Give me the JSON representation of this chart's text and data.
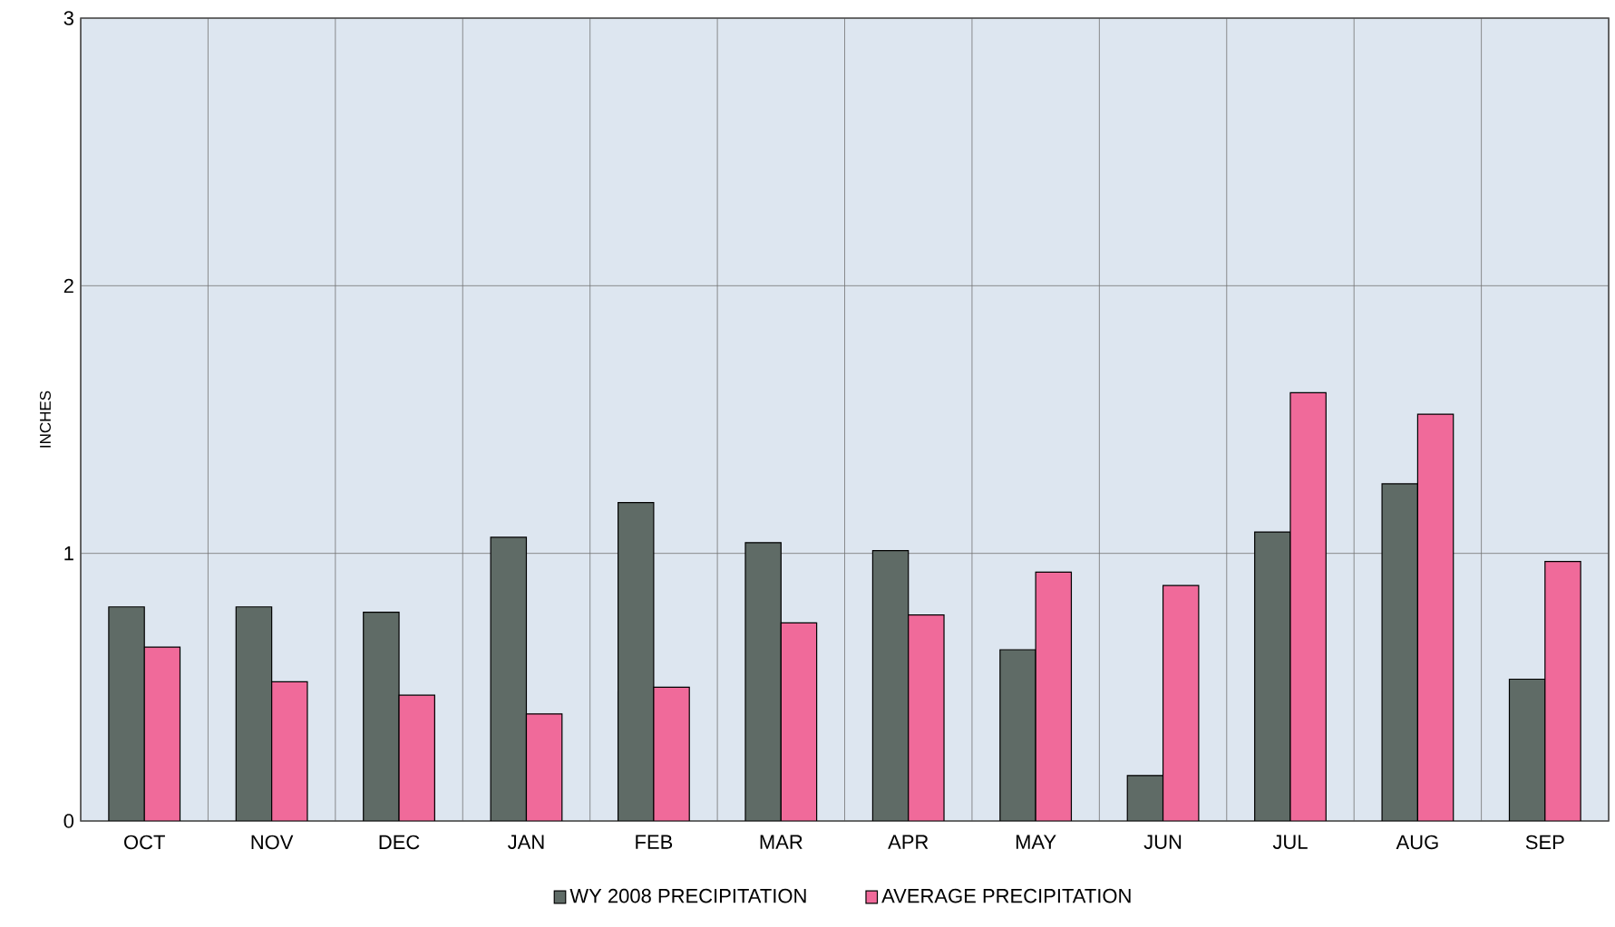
{
  "chart_data": {
    "type": "bar",
    "ylabel": "INCHES",
    "categories": [
      "OCT",
      "NOV",
      "DEC",
      "JAN",
      "FEB",
      "MAR",
      "APR",
      "MAY",
      "JUN",
      "JUL",
      "AUG",
      "SEP"
    ],
    "series": [
      {
        "name": "WY 2008 PRECIPITATION",
        "color": "#5f6b66",
        "values": [
          0.8,
          0.8,
          0.78,
          1.06,
          1.19,
          1.04,
          1.01,
          0.64,
          0.17,
          1.08,
          1.26,
          0.53
        ]
      },
      {
        "name": "AVERAGE PRECIPITATION",
        "color": "#f06a9a",
        "values": [
          0.65,
          0.52,
          0.47,
          0.4,
          0.5,
          0.74,
          0.77,
          0.93,
          0.88,
          1.6,
          1.52,
          0.97
        ]
      }
    ],
    "ylim": [
      0,
      3
    ],
    "yticks": [
      0,
      1,
      2,
      3
    ],
    "grid": true,
    "legend": "bottom"
  }
}
